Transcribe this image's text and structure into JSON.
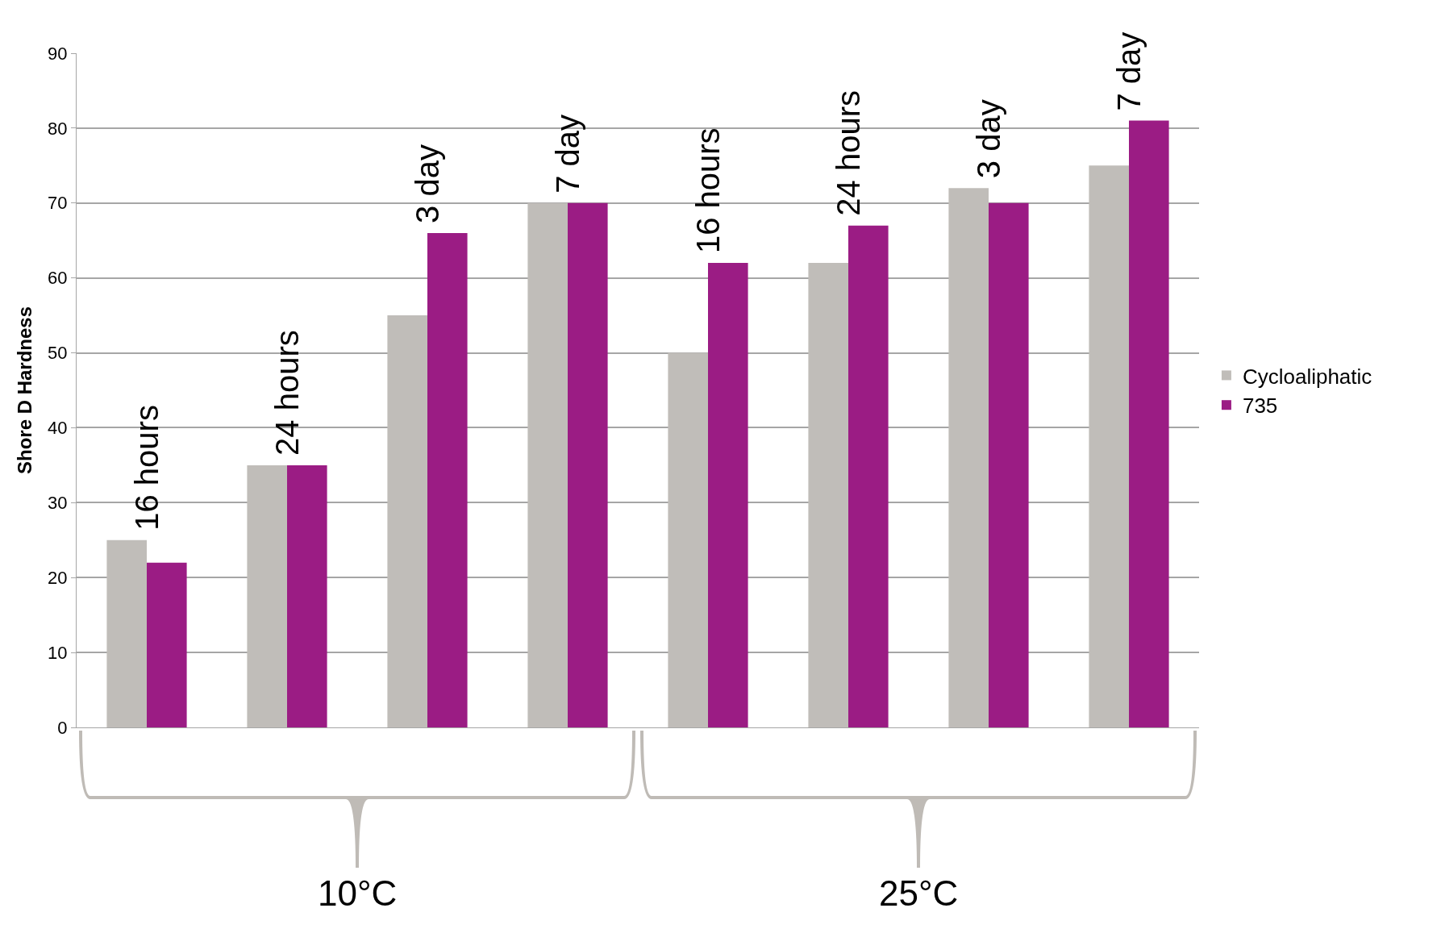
{
  "chart_data": {
    "type": "bar",
    "ylabel": "Shore D Hardness",
    "categories": [
      "16 hours",
      "24 hours",
      "3 day",
      "7 day",
      "16 hours",
      "24 hours",
      "3 day",
      "7 day"
    ],
    "series": [
      {
        "name": "Cycloaliphatic",
        "color": "#c0bdb9",
        "values": [
          25,
          35,
          55,
          70,
          50,
          62,
          72,
          75
        ]
      },
      {
        "name": "735",
        "color": "#9b1c84",
        "values": [
          22,
          35,
          66,
          70,
          62,
          67,
          70,
          81
        ]
      }
    ],
    "annotations": [
      "10°C",
      "25°C"
    ],
    "ylim": [
      0,
      90
    ],
    "yticks": [
      0,
      10,
      20,
      30,
      40,
      50,
      60,
      70,
      80,
      90
    ],
    "grid": "y",
    "legend": "right",
    "tick_labels": "y"
  }
}
